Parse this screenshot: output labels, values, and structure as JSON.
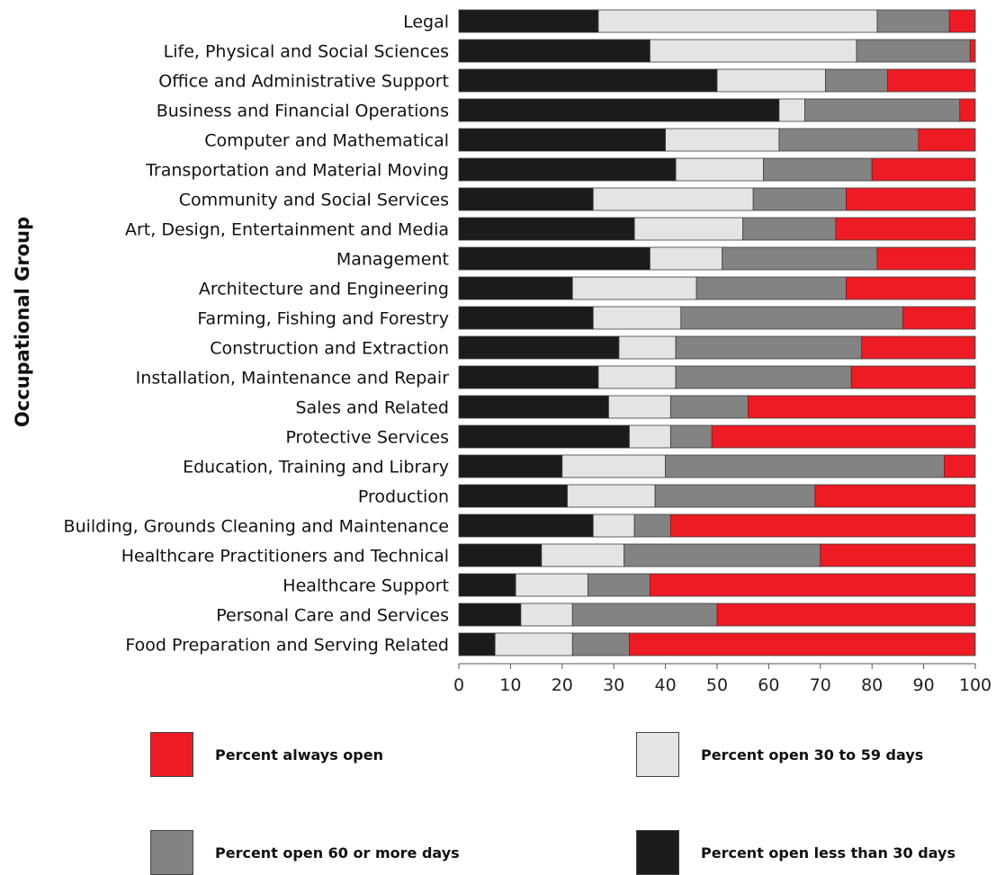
{
  "chart_data": {
    "type": "bar",
    "orientation": "horizontal",
    "stacked": true,
    "title": "",
    "xlabel": "",
    "ylabel": "Occupational Group",
    "xlim": [
      0,
      100
    ],
    "xticks": [
      0,
      10,
      20,
      30,
      40,
      50,
      60,
      70,
      80,
      90,
      100
    ],
    "grid": false,
    "legend_position": "bottom",
    "categories": [
      "Legal",
      "Life, Physical and Social Sciences",
      "Office and Administrative Support",
      "Business and Financial Operations",
      "Computer and Mathematical",
      "Transportation and Material Moving",
      "Community and Social Services",
      "Art, Design, Entertainment and Media",
      "Management",
      "Architecture and Engineering",
      "Farming, Fishing and Forestry",
      "Construction and Extraction",
      "Installation, Maintenance and Repair",
      "Sales and Related",
      "Protective Services",
      "Education, Training and Library",
      "Production",
      "Building, Grounds Cleaning and Maintenance",
      "Healthcare Practitioners and Technical",
      "Healthcare Support",
      "Personal Care and Services",
      "Food Preparation and Serving Related"
    ],
    "series": [
      {
        "name": "Percent open less than 30 days",
        "color": "#1b1b1b",
        "values": [
          27,
          37,
          50,
          62,
          40,
          42,
          26,
          34,
          37,
          22,
          26,
          31,
          27,
          29,
          33,
          20,
          21,
          26,
          16,
          11,
          12,
          7
        ]
      },
      {
        "name": "Percent open 30 to 59 days",
        "color": "#e4e4e4",
        "values": [
          54,
          40,
          21,
          5,
          22,
          17,
          31,
          21,
          14,
          24,
          17,
          11,
          15,
          12,
          8,
          20,
          17,
          8,
          16,
          14,
          10,
          15
        ]
      },
      {
        "name": "Percent open 60 or more days",
        "color": "#838383",
        "values": [
          14,
          22,
          12,
          30,
          27,
          21,
          18,
          18,
          30,
          29,
          43,
          36,
          34,
          15,
          8,
          54,
          31,
          7,
          38,
          12,
          28,
          11
        ]
      },
      {
        "name": "Percent always open",
        "color": "#ed1c24",
        "values": [
          5,
          1,
          17,
          3,
          11,
          20,
          25,
          27,
          19,
          25,
          14,
          22,
          24,
          44,
          51,
          6,
          31,
          59,
          30,
          63,
          50,
          67
        ]
      }
    ]
  },
  "legend": [
    {
      "label": "Percent always open",
      "color": "#ed1c24"
    },
    {
      "label": "Percent open 30 to 59 days",
      "color": "#e4e4e4"
    },
    {
      "label": "Percent open 60 or more days",
      "color": "#838383"
    },
    {
      "label": "Percent open less than 30 days",
      "color": "#1b1b1b"
    }
  ]
}
